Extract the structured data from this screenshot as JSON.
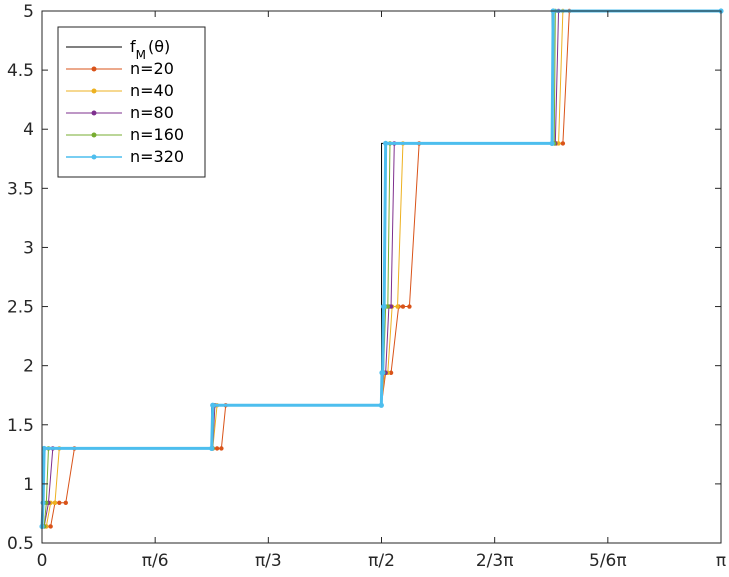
{
  "chart_data": {
    "type": "line",
    "title": "",
    "xlabel": "",
    "ylabel": "",
    "xlim": [
      0,
      3.14159
    ],
    "ylim": [
      0.5,
      5
    ],
    "grid": false,
    "legend_placement": "top-left",
    "x_ticks": [
      {
        "value": 0,
        "label": "0"
      },
      {
        "value": 0.5236,
        "label": "π/6"
      },
      {
        "value": 1.0472,
        "label": "π/3"
      },
      {
        "value": 1.5708,
        "label": "π/2"
      },
      {
        "value": 2.0944,
        "label": "2/3π"
      },
      {
        "value": 2.618,
        "label": "5/6π"
      },
      {
        "value": 3.14159,
        "label": "π"
      }
    ],
    "y_ticks": [
      {
        "value": 0.5,
        "label": "0.5"
      },
      {
        "value": 1,
        "label": "1"
      },
      {
        "value": 1.5,
        "label": "1.5"
      },
      {
        "value": 2,
        "label": "2"
      },
      {
        "value": 2.5,
        "label": "2.5"
      },
      {
        "value": 3,
        "label": "3"
      },
      {
        "value": 3.5,
        "label": "3.5"
      },
      {
        "value": 4,
        "label": "4"
      },
      {
        "value": 4.5,
        "label": "4.5"
      },
      {
        "value": 5,
        "label": "5"
      }
    ],
    "legend": [
      {
        "key": "fM",
        "label": "f",
        "subscript": "M",
        "suffix": "(θ)"
      },
      {
        "key": "n20",
        "label": "n=20"
      },
      {
        "key": "n40",
        "label": "n=40"
      },
      {
        "key": "n80",
        "label": "n=80"
      },
      {
        "key": "n160",
        "label": "n=160"
      },
      {
        "key": "n320",
        "label": "n=320"
      }
    ],
    "series": [
      {
        "name": "fM(θ)",
        "color": "#000000",
        "marker": false,
        "x": [
          0,
          0.0,
          0.785,
          0.785,
          1.571,
          1.571,
          2.36,
          2.36,
          3.14159
        ],
        "y": [
          0.64,
          1.3,
          1.3,
          1.665,
          1.665,
          3.88,
          3.88,
          5.0,
          5.0
        ]
      },
      {
        "name": "n=20",
        "color": "#d95319",
        "marker": true,
        "x": [
          0.0,
          0.02,
          0.04,
          0.06,
          0.08,
          0.11,
          0.15,
          0.79,
          0.81,
          0.83,
          0.85,
          1.57,
          1.59,
          1.615,
          1.65,
          1.67,
          1.7,
          1.745,
          2.38,
          2.41,
          2.44,
          3.14159
        ],
        "y": [
          0.64,
          0.64,
          0.64,
          0.84,
          0.84,
          0.84,
          1.3,
          1.3,
          1.3,
          1.3,
          1.665,
          1.665,
          1.94,
          1.94,
          2.5,
          2.5,
          2.5,
          3.88,
          3.88,
          3.88,
          5.0,
          5.0
        ]
      },
      {
        "name": "n=40",
        "color": "#edb120",
        "marker": true,
        "x": [
          0.0,
          0.02,
          0.04,
          0.06,
          0.08,
          0.79,
          0.81,
          1.57,
          1.585,
          1.6,
          1.62,
          1.645,
          1.67,
          2.37,
          2.39,
          2.41,
          3.14159
        ],
        "y": [
          0.64,
          0.64,
          0.84,
          0.84,
          1.3,
          1.3,
          1.665,
          1.665,
          1.94,
          1.94,
          2.5,
          2.5,
          3.88,
          3.88,
          3.88,
          5.0,
          5.0
        ]
      },
      {
        "name": "n=80",
        "color": "#7e2f8e",
        "marker": true,
        "x": [
          0.0,
          0.01,
          0.03,
          0.05,
          0.79,
          0.8,
          1.57,
          1.58,
          1.59,
          1.605,
          1.615,
          1.63,
          2.36,
          2.375,
          2.39,
          3.14159
        ],
        "y": [
          0.64,
          0.64,
          0.84,
          1.3,
          1.3,
          1.665,
          1.665,
          1.94,
          1.94,
          2.5,
          2.5,
          3.88,
          3.88,
          3.88,
          5.0,
          5.0
        ]
      },
      {
        "name": "n=160",
        "color": "#77ac30",
        "marker": true,
        "x": [
          0.0,
          0.01,
          0.02,
          0.03,
          0.79,
          0.795,
          1.57,
          1.575,
          1.58,
          1.59,
          1.6,
          1.61,
          2.36,
          2.37,
          2.375,
          3.14159
        ],
        "y": [
          0.64,
          0.64,
          0.84,
          1.3,
          1.3,
          1.665,
          1.665,
          1.94,
          1.94,
          2.5,
          2.5,
          3.88,
          3.88,
          3.88,
          5.0,
          5.0
        ]
      },
      {
        "name": "n=320",
        "color": "#4dbeee",
        "marker": true,
        "x": [
          0.0,
          0.005,
          0.01,
          0.785,
          0.79,
          1.57,
          1.573,
          1.576,
          1.58,
          1.583,
          1.59,
          2.36,
          2.365,
          3.14159
        ],
        "y": [
          0.64,
          0.84,
          1.3,
          1.3,
          1.665,
          1.665,
          1.94,
          1.94,
          2.5,
          2.5,
          3.88,
          3.88,
          5.0,
          5.0
        ]
      }
    ]
  }
}
